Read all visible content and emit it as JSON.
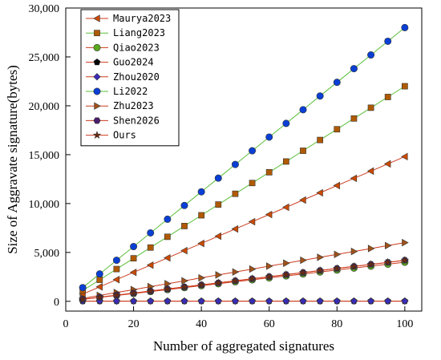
{
  "chart_data": {
    "type": "line",
    "title": "",
    "xlabel": "Number of aggregated signatures",
    "ylabel": "Size of Aggravate signature(bytes)",
    "xlim": [
      0,
      105
    ],
    "ylim": [
      -1000,
      30000
    ],
    "xticks": [
      0,
      20,
      40,
      60,
      80,
      100
    ],
    "xtick_labels": [
      "0",
      "20",
      "40",
      "60",
      "80",
      "100"
    ],
    "yticks": [
      0,
      5000,
      10000,
      15000,
      20000,
      25000,
      30000
    ],
    "ytick_labels": [
      "0",
      "5,000",
      "10,000",
      "15,000",
      "20,000",
      "25,000",
      "30,000"
    ],
    "grid": false,
    "legend_position": "top-left",
    "x": [
      5,
      10,
      15,
      20,
      25,
      30,
      35,
      40,
      45,
      50,
      55,
      60,
      65,
      70,
      75,
      80,
      85,
      90,
      95,
      100
    ],
    "series": [
      {
        "name": "Maurya2023",
        "marker": "triangle-left",
        "color": "#cc4a00",
        "values": [
          740,
          1480,
          2220,
          2960,
          3700,
          4440,
          5180,
          5920,
          6660,
          7400,
          8140,
          8880,
          9620,
          10360,
          11100,
          11840,
          12580,
          13320,
          14060,
          14800
        ]
      },
      {
        "name": "Liang2023",
        "marker": "square",
        "color": "#b05a00",
        "values": [
          1100,
          2200,
          3300,
          4400,
          5500,
          6600,
          7700,
          8800,
          9900,
          11000,
          12100,
          13200,
          14300,
          15400,
          16500,
          17600,
          18700,
          19800,
          20900,
          22000
        ]
      },
      {
        "name": "Qiao2023",
        "marker": "circle",
        "color": "#5aa81e",
        "values": [
          200,
          400,
          600,
          800,
          1000,
          1200,
          1400,
          1600,
          1800,
          2000,
          2200,
          2400,
          2600,
          2800,
          3000,
          3200,
          3400,
          3600,
          3800,
          4000
        ]
      },
      {
        "name": "Guo2024",
        "marker": "pentagon",
        "color": "#000000",
        "values": [
          20,
          20,
          20,
          20,
          20,
          20,
          20,
          20,
          20,
          20,
          20,
          20,
          20,
          20,
          20,
          20,
          20,
          20,
          20,
          20
        ]
      },
      {
        "name": "Zhou2020",
        "marker": "diamond",
        "color": "#3a2bb8",
        "values": [
          20,
          20,
          20,
          20,
          20,
          20,
          20,
          20,
          20,
          20,
          20,
          20,
          20,
          20,
          20,
          20,
          20,
          20,
          20,
          20
        ]
      },
      {
        "name": "Li2022",
        "marker": "circle",
        "color": "#0a3fd4",
        "values": [
          1400,
          2800,
          4200,
          5600,
          7000,
          8400,
          9800,
          11200,
          12600,
          14000,
          15400,
          16800,
          18200,
          19600,
          21000,
          22400,
          23800,
          25200,
          26600,
          28000
        ]
      },
      {
        "name": "Zhu2023",
        "marker": "triangle-right",
        "color": "#a0521a",
        "values": [
          300,
          600,
          900,
          1200,
          1500,
          1800,
          2100,
          2400,
          2700,
          3000,
          3300,
          3600,
          3900,
          4200,
          4500,
          4800,
          5100,
          5400,
          5700,
          6000
        ]
      },
      {
        "name": "Shen2026",
        "marker": "hexagon",
        "color": "#4a1d6b",
        "values": [
          210,
          420,
          630,
          840,
          1050,
          1260,
          1470,
          1680,
          1890,
          2100,
          2310,
          2520,
          2730,
          2940,
          3150,
          3360,
          3570,
          3780,
          3990,
          4200
        ]
      },
      {
        "name": "Ours",
        "marker": "star",
        "color": "#6b2a0e",
        "values": [
          210,
          420,
          630,
          840,
          1050,
          1260,
          1470,
          1680,
          1890,
          2100,
          2310,
          2520,
          2730,
          2940,
          3150,
          3360,
          3570,
          3780,
          3990,
          4200
        ]
      }
    ]
  }
}
